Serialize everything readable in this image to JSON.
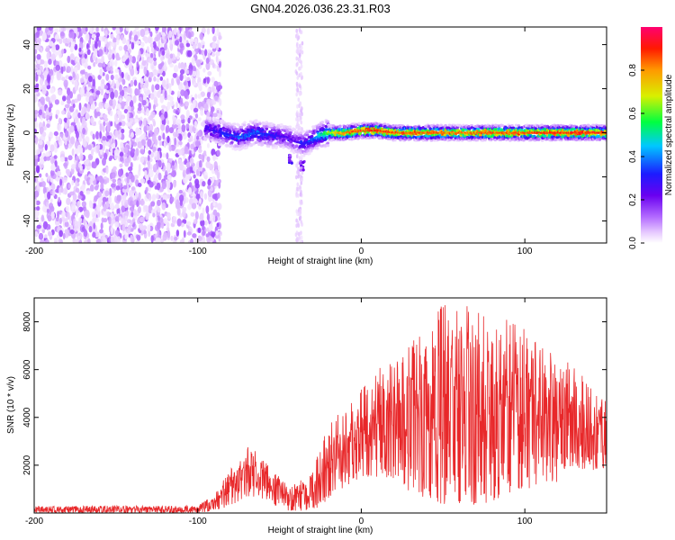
{
  "figure": {
    "title": "GN04.2026.036.23.31.R03"
  },
  "chart_data": [
    {
      "type": "heatmap",
      "title": "GN04.2026.036.23.31.R03",
      "xlabel": "Height of straight line (km)",
      "ylabel": "Frequency (Hz)",
      "xlim": [
        -200,
        150
      ],
      "ylim": [
        -50,
        48
      ],
      "xticks": [
        -200,
        -100,
        0,
        100
      ],
      "yticks": [
        -40,
        -20,
        0,
        20,
        40
      ],
      "colorbar": {
        "label": "Normalized spectral amplitude",
        "range": [
          0,
          1
        ],
        "ticks": [
          0,
          0.2,
          0.4,
          0.6,
          0.8
        ],
        "colors": [
          "#ffffff",
          "#e6c8ff",
          "#b36bff",
          "#6a00f0",
          "#1c1cff",
          "#00c8ff",
          "#00ff40",
          "#d8f000",
          "#ff9a00",
          "#ff1a00",
          "#ff0070"
        ]
      },
      "noise_region_km": [
        -200,
        -88
      ],
      "vertical_noise_band_km": [
        -40,
        -36
      ],
      "ridge": {
        "height_km": [
          -95,
          -85,
          -75,
          -65,
          -55,
          -45,
          -40,
          -35,
          -30,
          -25,
          -20,
          -10,
          0,
          10,
          20,
          40,
          60,
          80,
          100,
          120,
          140,
          150
        ],
        "frequency_hz": [
          2,
          0,
          -2,
          0,
          -1,
          -2,
          -4,
          -5,
          -3,
          -1,
          0,
          0,
          1,
          1,
          0,
          0,
          0,
          0,
          0,
          0,
          0,
          0
        ],
        "amplitude": [
          0.35,
          0.4,
          0.45,
          0.45,
          0.4,
          0.35,
          0.35,
          0.4,
          0.45,
          0.55,
          0.7,
          0.85,
          0.9,
          0.95,
          0.9,
          0.9,
          0.85,
          0.9,
          0.9,
          0.95,
          0.95,
          0.9
        ]
      },
      "secondary_spots": [
        {
          "height_km": -43,
          "frequency_hz": -12,
          "amplitude": 0.35
        },
        {
          "height_km": -36,
          "frequency_hz": -15,
          "amplitude": 0.3
        }
      ]
    },
    {
      "type": "line",
      "xlabel": "Height of straight line (km)",
      "ylabel": "SNR (10 * v/v)",
      "xlim": [
        -200,
        150
      ],
      "ylim": [
        0,
        9000
      ],
      "xticks": [
        -200,
        -100,
        0,
        100
      ],
      "yticks": [
        2000,
        4000,
        6000,
        8000
      ],
      "series": [
        {
          "name": "SNR",
          "color": "#e8282a",
          "envelope_x": [
            -200,
            -150,
            -100,
            -90,
            -80,
            -70,
            -60,
            -50,
            -45,
            -40,
            -35,
            -30,
            -25,
            -20,
            -15,
            -10,
            -5,
            0,
            10,
            20,
            30,
            40,
            50,
            60,
            70,
            80,
            90,
            100,
            110,
            120,
            130,
            140,
            150
          ],
          "envelope_lower": [
            0,
            0,
            0,
            100,
            300,
            700,
            600,
            200,
            100,
            100,
            100,
            100,
            300,
            600,
            900,
            1100,
            1300,
            1500,
            1500,
            1300,
            900,
            600,
            300,
            300,
            300,
            500,
            800,
            1000,
            1100,
            1300,
            1800,
            1800,
            1500
          ],
          "envelope_upper": [
            280,
            300,
            300,
            800,
            1800,
            2900,
            2400,
            1500,
            1300,
            1300,
            1500,
            1700,
            2900,
            3800,
            4200,
            4300,
            4800,
            5200,
            6000,
            6500,
            7500,
            7900,
            8800,
            8800,
            8500,
            8600,
            8200,
            7700,
            7200,
            6500,
            6200,
            5400,
            5200
          ]
        }
      ]
    }
  ]
}
